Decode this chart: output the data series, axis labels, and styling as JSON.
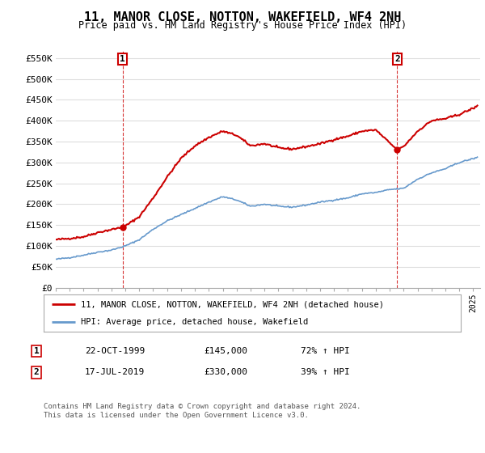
{
  "title": "11, MANOR CLOSE, NOTTON, WAKEFIELD, WF4 2NH",
  "subtitle": "Price paid vs. HM Land Registry's House Price Index (HPI)",
  "legend_label_red": "11, MANOR CLOSE, NOTTON, WAKEFIELD, WF4 2NH (detached house)",
  "legend_label_blue": "HPI: Average price, detached house, Wakefield",
  "footer": "Contains HM Land Registry data © Crown copyright and database right 2024.\nThis data is licensed under the Open Government Licence v3.0.",
  "transaction1_date": "22-OCT-1999",
  "transaction1_price": "£145,000",
  "transaction1_hpi": "72% ↑ HPI",
  "transaction1_year": 1999.8,
  "transaction1_value": 145000,
  "transaction2_date": "17-JUL-2019",
  "transaction2_price": "£330,000",
  "transaction2_hpi": "39% ↑ HPI",
  "transaction2_year": 2019.54,
  "transaction2_value": 330000,
  "xlim_left": 1995.0,
  "xlim_right": 2025.5,
  "ylim_bottom": 0,
  "ylim_top": 570000,
  "ytick_values": [
    0,
    50000,
    100000,
    150000,
    200000,
    250000,
    300000,
    350000,
    400000,
    450000,
    500000,
    550000
  ],
  "ytick_labels": [
    "£0",
    "£50K",
    "£100K",
    "£150K",
    "£200K",
    "£250K",
    "£300K",
    "£350K",
    "£400K",
    "£450K",
    "£500K",
    "£550K"
  ],
  "red_color": "#cc0000",
  "blue_color": "#6699cc",
  "grid_color": "#dddddd",
  "background_color": "#ffffff",
  "vline_color": "#cc0000",
  "marker_box_color": "#cc0000",
  "blue_waypoints_x": [
    1995,
    1996,
    1997,
    1998,
    1999,
    2000,
    2001,
    2002,
    2003,
    2004,
    2005,
    2006,
    2007,
    2008,
    2009,
    2010,
    2011,
    2012,
    2013,
    2014,
    2015,
    2016,
    2017,
    2018,
    2019,
    2020,
    2021,
    2022,
    2023,
    2024,
    2025.3
  ],
  "blue_waypoints_y": [
    68000,
    72000,
    78000,
    85000,
    90000,
    100000,
    115000,
    140000,
    160000,
    175000,
    190000,
    205000,
    218000,
    210000,
    195000,
    200000,
    195000,
    193000,
    198000,
    205000,
    210000,
    215000,
    225000,
    228000,
    235000,
    238000,
    260000,
    275000,
    285000,
    300000,
    312000
  ],
  "red_waypoints_x": [
    1995,
    1996,
    1997,
    1998,
    1999.8,
    2000,
    2001,
    2002,
    2003,
    2004,
    2005,
    2006,
    2007,
    2008,
    2009,
    2010,
    2011,
    2012,
    2013,
    2014,
    2015,
    2016,
    2017,
    2018,
    2019.54,
    2020,
    2021,
    2022,
    2023,
    2024,
    2025,
    2025.3
  ],
  "red_waypoints_y": [
    115000,
    118000,
    122000,
    132000,
    145000,
    148000,
    170000,
    215000,
    265000,
    310000,
    340000,
    360000,
    375000,
    365000,
    340000,
    345000,
    335000,
    332000,
    338000,
    345000,
    355000,
    363000,
    375000,
    378000,
    330000,
    338000,
    375000,
    400000,
    405000,
    415000,
    430000,
    435000
  ],
  "noise_seed": 42
}
